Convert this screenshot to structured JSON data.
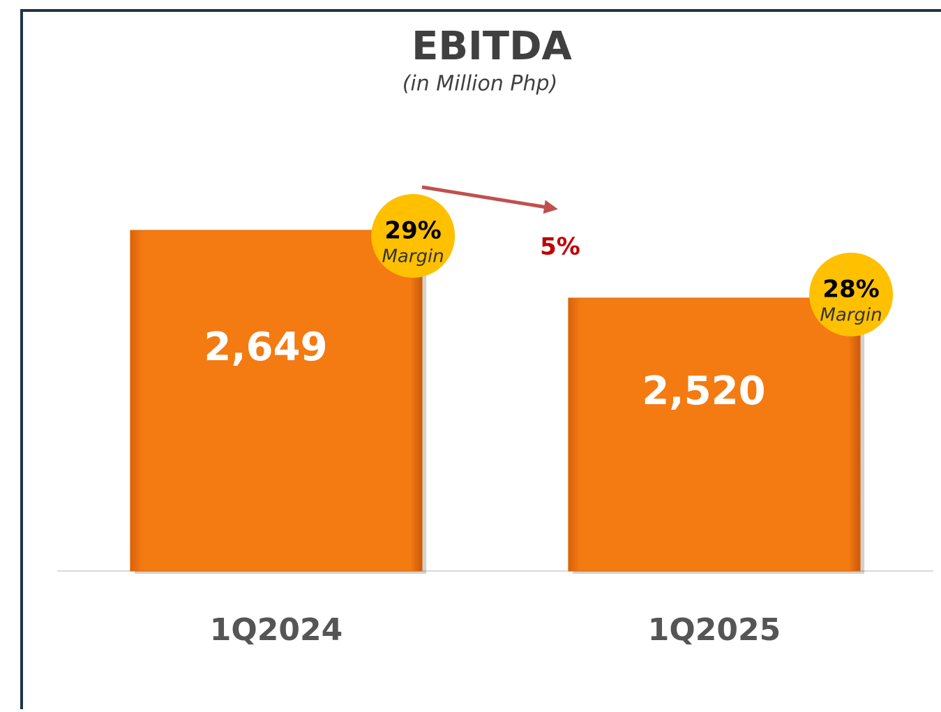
{
  "chart_data": {
    "type": "bar",
    "title": "EBITDA",
    "subtitle": "(in Million Php)",
    "categories": [
      "1Q2024",
      "1Q2025"
    ],
    "values": [
      2649,
      2520
    ],
    "value_labels": [
      "2,649",
      "2,520"
    ],
    "color": "#f47a12",
    "ylim": [
      2000,
      3000
    ],
    "margin_labels": [
      "29%",
      "28%"
    ],
    "margin_caption": "Margin",
    "change_label": "5%"
  }
}
